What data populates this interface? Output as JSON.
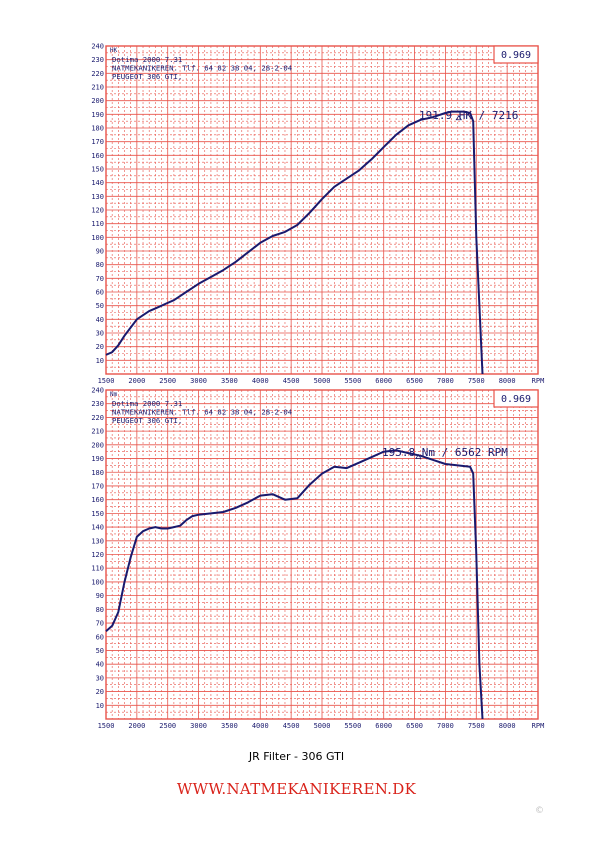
{
  "colors": {
    "grid": "#e8534a",
    "curve": "#1a1a6e",
    "footer": "#d9231b",
    "text": "#1a1a6e"
  },
  "caption": "JR Filter - 306 GTI",
  "footer": "WWW.NATMEKANIKEREN.DK",
  "watermark": "©",
  "chart_data": [
    {
      "type": "line",
      "unit_label": "HK",
      "header_lines": [
        "Dotima 2000 7.31",
        "NATMEKANIKEREN. Tlf. 64 82 38 04, 28-2-04",
        "PEUGEOT 306 GTI,"
      ],
      "correction": "0.969",
      "annotation": "191.9 HK / 7216",
      "peak": {
        "x": 7216,
        "y": 191.9
      },
      "x_ticks": [
        "1500",
        "2000",
        "2500",
        "3000",
        "3500",
        "4000",
        "4500",
        "5000",
        "5500",
        "6000",
        "6500",
        "7000",
        "7500",
        "8000",
        "RPM"
      ],
      "y_ticks": [
        "10",
        "20",
        "30",
        "40",
        "50",
        "60",
        "70",
        "80",
        "90",
        "100",
        "110",
        "120",
        "130",
        "140",
        "150",
        "160",
        "170",
        "180",
        "190",
        "200",
        "210",
        "220",
        "230",
        "240"
      ],
      "xlim": [
        1500,
        8500
      ],
      "ylim": [
        0,
        240
      ],
      "grid": true,
      "series": [
        {
          "x": [
            1500,
            1600,
            1700,
            1800,
            1900,
            2000,
            2100,
            2200,
            2300,
            2400,
            2500,
            2600,
            2700,
            2800,
            2900,
            3000,
            3200,
            3400,
            3600,
            3800,
            4000,
            4200,
            4400,
            4600,
            4800,
            5000,
            5200,
            5400,
            5600,
            5800,
            6000,
            6200,
            6400,
            6600,
            6800,
            7000,
            7100,
            7200,
            7300,
            7400,
            7450,
            7500,
            7600
          ],
          "y": [
            14,
            16,
            21,
            28,
            34,
            40,
            43,
            46,
            48,
            50,
            52,
            54,
            57,
            60,
            63,
            66,
            71,
            76,
            82,
            89,
            96,
            101,
            104,
            109,
            118,
            128,
            137,
            143,
            149,
            157,
            166,
            175,
            182,
            186,
            188,
            191,
            192,
            192,
            192,
            191,
            185,
            100,
            0
          ]
        }
      ]
    },
    {
      "type": "line",
      "unit_label": "Nm",
      "header_lines": [
        "Dotima 2000 7.31",
        "NATMEKANIKEREN. Tlf. 64 82 38 04, 28-2-04",
        "PEUGEOT 306 GTI,"
      ],
      "correction": "0.969",
      "annotation": "195.8 Nm / 6562 RPM",
      "peak": {
        "x": 6562,
        "y": 195.8
      },
      "x_ticks": [
        "1500",
        "2000",
        "2500",
        "3000",
        "3500",
        "4000",
        "4500",
        "5000",
        "5500",
        "6000",
        "6500",
        "7000",
        "7500",
        "8000",
        "RPM"
      ],
      "y_ticks": [
        "10",
        "20",
        "30",
        "40",
        "50",
        "60",
        "70",
        "80",
        "90",
        "100",
        "110",
        "120",
        "130",
        "140",
        "150",
        "160",
        "170",
        "180",
        "190",
        "200",
        "210",
        "220",
        "230",
        "240"
      ],
      "xlim": [
        1500,
        8500
      ],
      "ylim": [
        0,
        240
      ],
      "grid": true,
      "series": [
        {
          "x": [
            1500,
            1600,
            1700,
            1800,
            1900,
            2000,
            2100,
            2200,
            2300,
            2400,
            2500,
            2600,
            2700,
            2800,
            2900,
            3000,
            3200,
            3400,
            3600,
            3800,
            4000,
            4200,
            4400,
            4600,
            4800,
            5000,
            5200,
            5400,
            5600,
            5800,
            6000,
            6200,
            6400,
            6600,
            6800,
            7000,
            7200,
            7400,
            7450,
            7500,
            7550,
            7600
          ],
          "y": [
            64,
            68,
            78,
            100,
            118,
            133,
            137,
            139,
            140,
            139,
            139,
            140,
            141,
            145,
            148,
            149,
            150,
            151,
            154,
            158,
            163,
            164,
            160,
            161,
            171,
            179,
            184,
            183,
            187,
            191,
            195,
            196,
            194,
            192,
            189,
            186,
            185,
            184,
            179,
            120,
            40,
            0
          ]
        }
      ]
    }
  ]
}
